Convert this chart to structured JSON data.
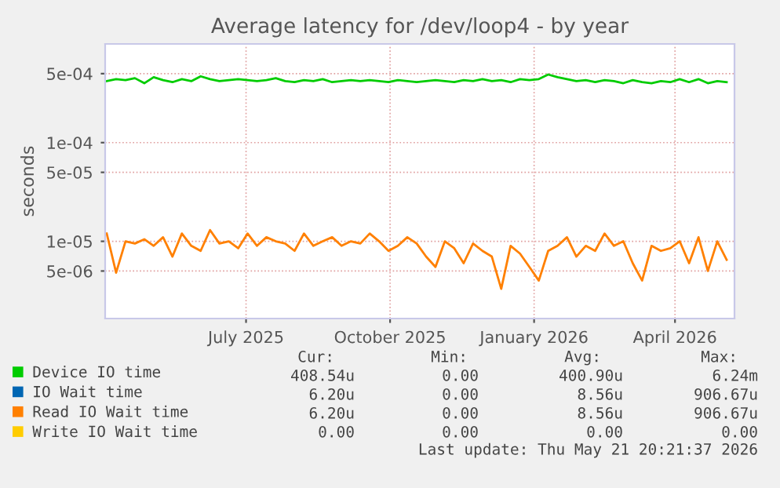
{
  "chart_data": {
    "type": "line",
    "title": "Average latency for /dev/loop4 - by year",
    "ylabel": "seconds",
    "x": [
      "2025-04-03",
      "2025-04-09",
      "2025-04-15",
      "2025-04-21",
      "2025-04-27",
      "2025-05-03",
      "2025-05-09",
      "2025-05-15",
      "2025-05-21",
      "2025-05-27",
      "2025-06-02",
      "2025-06-08",
      "2025-06-14",
      "2025-06-20",
      "2025-06-26",
      "2025-07-02",
      "2025-07-08",
      "2025-07-14",
      "2025-07-20",
      "2025-07-26",
      "2025-08-01",
      "2025-08-07",
      "2025-08-13",
      "2025-08-19",
      "2025-08-25",
      "2025-08-31",
      "2025-09-06",
      "2025-09-12",
      "2025-09-18",
      "2025-09-24",
      "2025-09-30",
      "2025-10-06",
      "2025-10-12",
      "2025-10-18",
      "2025-10-24",
      "2025-10-30",
      "2025-11-05",
      "2025-11-11",
      "2025-11-17",
      "2025-11-23",
      "2025-11-29",
      "2025-12-05",
      "2025-12-11",
      "2025-12-17",
      "2025-12-23",
      "2025-12-29",
      "2026-01-04",
      "2026-01-10",
      "2026-01-16",
      "2026-01-22",
      "2026-01-28",
      "2026-02-03",
      "2026-02-09",
      "2026-02-15",
      "2026-02-21",
      "2026-02-27",
      "2026-03-05",
      "2026-03-11",
      "2026-03-17",
      "2026-03-23",
      "2026-03-29",
      "2026-04-04",
      "2026-04-10",
      "2026-04-16",
      "2026-04-22",
      "2026-04-28",
      "2026-05-04"
    ],
    "series": [
      {
        "name": "Device IO time",
        "color": "#00cc00",
        "values": [
          0.00042,
          0.00044,
          0.00043,
          0.00045,
          0.0004,
          0.00046,
          0.00043,
          0.00041,
          0.00044,
          0.00042,
          0.00047,
          0.00044,
          0.00042,
          0.00043,
          0.00044,
          0.00043,
          0.00042,
          0.00043,
          0.00045,
          0.00042,
          0.00041,
          0.00043,
          0.00042,
          0.00044,
          0.00041,
          0.00042,
          0.00043,
          0.00042,
          0.00043,
          0.00042,
          0.00041,
          0.00043,
          0.00042,
          0.00041,
          0.00042,
          0.00043,
          0.00042,
          0.00041,
          0.00043,
          0.00042,
          0.00044,
          0.00042,
          0.00043,
          0.00041,
          0.00044,
          0.00043,
          0.00044,
          0.00049,
          0.00046,
          0.00044,
          0.00042,
          0.00043,
          0.00041,
          0.00043,
          0.00042,
          0.0004,
          0.00043,
          0.00041,
          0.0004,
          0.00042,
          0.00041,
          0.00044,
          0.00041,
          0.00044,
          0.0004,
          0.00042,
          0.00041
        ]
      },
      {
        "name": "IO Wait time",
        "color": "#0066b3",
        "values": [
          null,
          null,
          null,
          null,
          null,
          null,
          null,
          null,
          null,
          null,
          null,
          null,
          null,
          null,
          null,
          null,
          null,
          null,
          null,
          null,
          null,
          null,
          null,
          null,
          null,
          null,
          null,
          null,
          null,
          null,
          null,
          null,
          null,
          null,
          null,
          null,
          null,
          null,
          null,
          null,
          null,
          null,
          null,
          null,
          null,
          null,
          null,
          null,
          null,
          null,
          null,
          null,
          null,
          null,
          null,
          null,
          null,
          null,
          null,
          null,
          null,
          null,
          null,
          null,
          null,
          null,
          null
        ]
      },
      {
        "name": "Read IO Wait time",
        "color": "#ff8000",
        "values": [
          1.2e-05,
          4.8e-06,
          1e-05,
          9.5e-06,
          1.05e-05,
          9e-06,
          1.1e-05,
          7e-06,
          1.2e-05,
          9e-06,
          8e-06,
          1.3e-05,
          9.5e-06,
          1e-05,
          8.5e-06,
          1.2e-05,
          9e-06,
          1.1e-05,
          1e-05,
          9.5e-06,
          8e-06,
          1.2e-05,
          9e-06,
          1e-05,
          1.1e-05,
          9e-06,
          1e-05,
          9.5e-06,
          1.2e-05,
          1e-05,
          8e-06,
          9e-06,
          1.1e-05,
          9.5e-06,
          7e-06,
          5.5e-06,
          1e-05,
          8.5e-06,
          6e-06,
          9.5e-06,
          8e-06,
          7e-06,
          3.3e-06,
          9e-06,
          7.5e-06,
          5.5e-06,
          4e-06,
          8e-06,
          9e-06,
          1.1e-05,
          7e-06,
          9e-06,
          8e-06,
          1.2e-05,
          9e-06,
          1e-05,
          6e-06,
          4e-06,
          9e-06,
          8e-06,
          8.5e-06,
          1e-05,
          6e-06,
          1.1e-05,
          5e-06,
          1e-05,
          6.5e-06
        ]
      },
      {
        "name": "Write IO Wait time",
        "color": "#ffcc00",
        "values": [
          null,
          null,
          null,
          null,
          null,
          null,
          null,
          null,
          null,
          null,
          null,
          null,
          null,
          null,
          null,
          null,
          null,
          null,
          null,
          null,
          null,
          null,
          null,
          null,
          null,
          null,
          null,
          null,
          null,
          null,
          null,
          null,
          null,
          null,
          null,
          null,
          null,
          null,
          null,
          null,
          null,
          null,
          null,
          null,
          null,
          null,
          null,
          null,
          null,
          null,
          null,
          null,
          null,
          null,
          null,
          null,
          null,
          null,
          null,
          null,
          null,
          null,
          null,
          null,
          null,
          null,
          null
        ]
      }
    ],
    "log": "y",
    "ylim": [
      1.65e-06,
      0.001
    ],
    "yticks": [
      {
        "value": 5e-06,
        "label": "5e-06"
      },
      {
        "value": 1e-05,
        "label": "1e-05"
      },
      {
        "value": 5e-05,
        "label": "5e-05"
      },
      {
        "value": 0.0001,
        "label": "1e-04"
      },
      {
        "value": 0.0005,
        "label": "5e-04"
      }
    ],
    "xlim": [
      "2025-04-02",
      "2026-05-09"
    ],
    "xticks": [
      {
        "value": "2025-07-01",
        "label": "July 2025"
      },
      {
        "value": "2025-10-01",
        "label": "October 2025"
      },
      {
        "value": "2026-01-01",
        "label": "January 2026"
      },
      {
        "value": "2026-04-01",
        "label": "April 2026"
      }
    ],
    "grid": true,
    "legend": "bottom",
    "line_style": "solid",
    "marker": "none",
    "annotations": [
      "Cur:",
      "Min:",
      "Avg:",
      "Max:",
      "408.54u",
      "0.00",
      "400.90u",
      "6.24m",
      "6.20u",
      "0.00",
      "8.56u",
      "906.67u",
      "6.20u",
      "0.00",
      "8.56u",
      "906.67u",
      "0.00",
      "0.00",
      "0.00",
      "0.00",
      "Last update: Thu May 21 20:21:37 2026"
    ]
  }
}
